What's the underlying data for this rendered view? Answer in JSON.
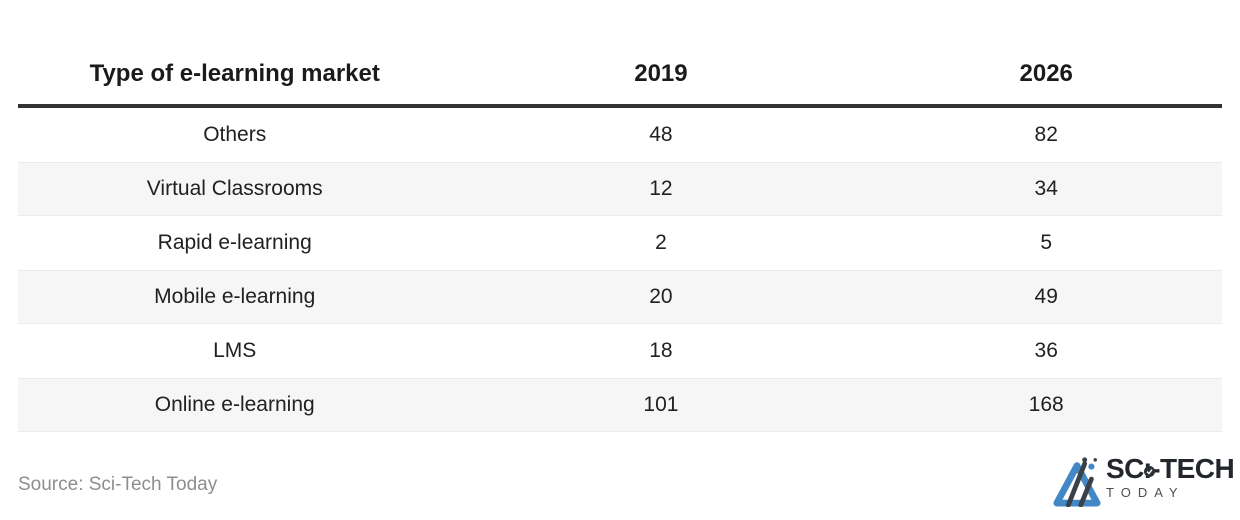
{
  "table": {
    "columns": [
      "Type of e-learning market",
      "2019",
      "2026"
    ],
    "rows": [
      {
        "label": "Others",
        "v2019": "48",
        "v2026": "82"
      },
      {
        "label": "Virtual Classrooms",
        "v2019": "12",
        "v2026": "34"
      },
      {
        "label": "Rapid e-learning",
        "v2019": "2",
        "v2026": "5"
      },
      {
        "label": "Mobile e-learning",
        "v2019": "20",
        "v2026": "49"
      },
      {
        "label": "LMS",
        "v2019": "18",
        "v2026": "36"
      },
      {
        "label": "Online e-learning",
        "v2019": "101",
        "v2026": "168"
      }
    ]
  },
  "footer": {
    "source": "Source: Sci-Tech Today"
  },
  "logo": {
    "name_pre": "SC",
    "name_i": "ı",
    "name_post": "-TECH",
    "tagline": "TODAY"
  },
  "colors": {
    "header_rule": "#333333",
    "row_alt": "#f6f6f6",
    "row_alt_edge": "#ececec",
    "text": "#212121",
    "source_gray": "#8e8e8e",
    "brand_dark": "#23272d",
    "logo_blue": "#4287c6",
    "logo_slate": "#3a4149"
  },
  "chart_data": {
    "type": "table",
    "title": "Type of e-learning market",
    "categories": [
      "Others",
      "Virtual Classrooms",
      "Rapid e-learning",
      "Mobile e-learning",
      "LMS",
      "Online e-learning"
    ],
    "series": [
      {
        "name": "2019",
        "values": [
          48,
          12,
          2,
          20,
          18,
          101
        ]
      },
      {
        "name": "2026",
        "values": [
          82,
          34,
          5,
          49,
          36,
          168
        ]
      }
    ],
    "source": "Source: Sci-Tech Today",
    "layout": {
      "striped_rows": true,
      "header_rule": true,
      "alignment": "center"
    }
  }
}
